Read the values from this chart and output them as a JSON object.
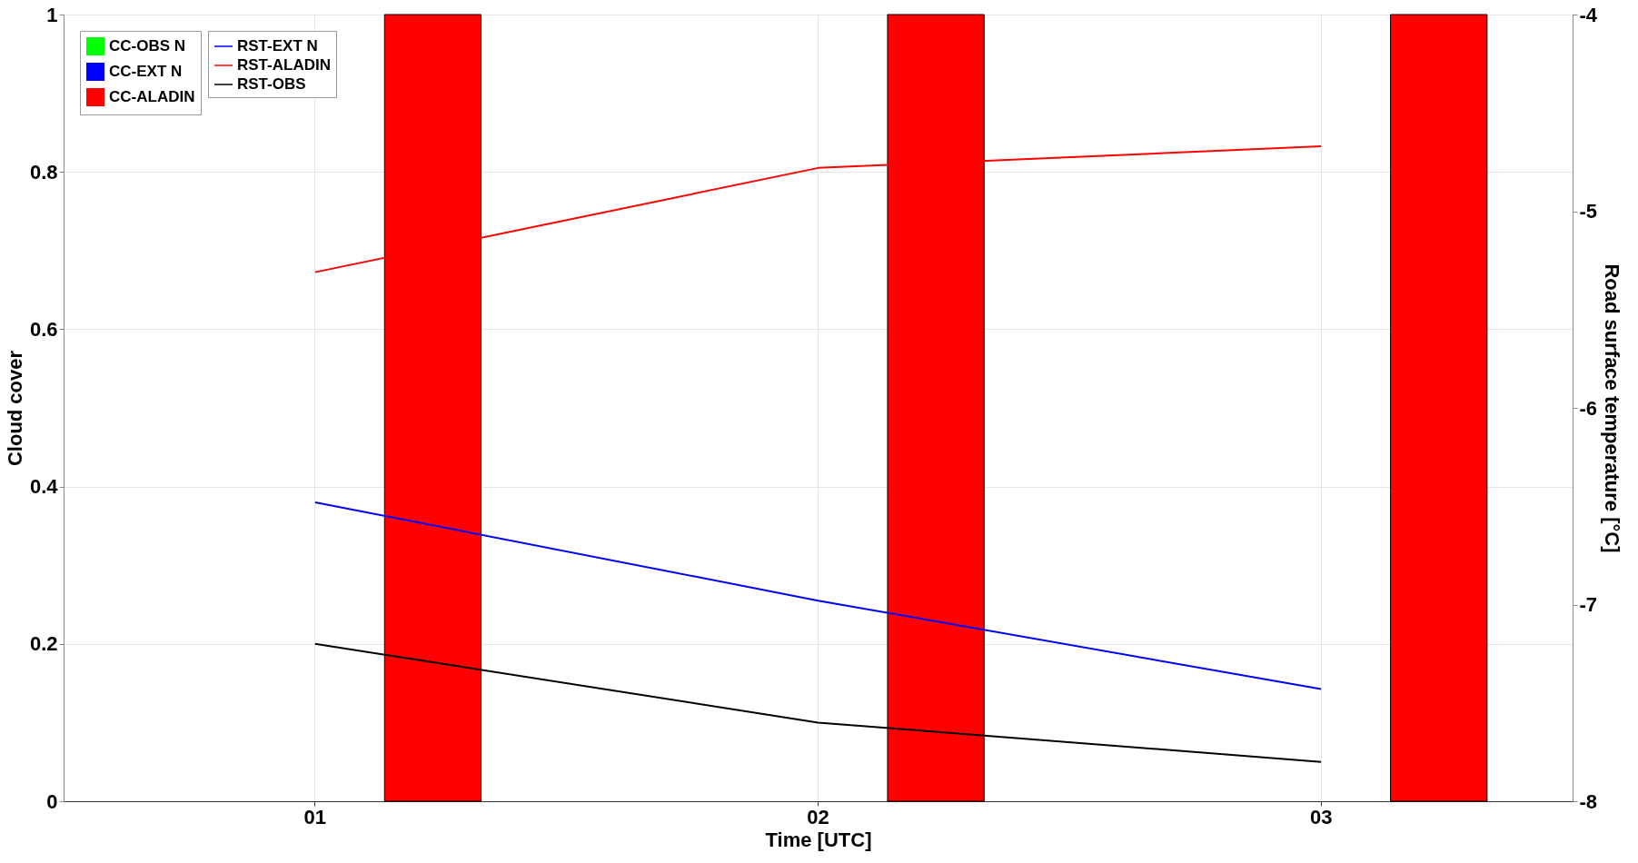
{
  "chart_data": {
    "type": "bar",
    "xlabel": "Time [UTC]",
    "ylabel": "Cloud cover",
    "y2label": "Road surface temperature [°C]",
    "categories": [
      "01",
      "02",
      "03"
    ],
    "ylim": [
      0,
      1
    ],
    "yticks": [
      0,
      0.2,
      0.4,
      0.6,
      0.8,
      1
    ],
    "y2lim": [
      -8,
      -4
    ],
    "y2ticks": [
      -8,
      -7,
      -6,
      -5,
      -4
    ],
    "grid": true,
    "legend": "top left",
    "series": [
      {
        "name": "CC-OBS N",
        "color": "#00ff00",
        "values": [
          0,
          0,
          0
        ]
      },
      {
        "name": "CC-EXT N",
        "color": "#0000ff",
        "values": [
          0,
          0,
          0
        ]
      },
      {
        "name": "CC-ALADIN",
        "color": "#ff0000",
        "values": [
          1,
          1,
          1
        ]
      },
      {
        "name": "RST-EXT N",
        "type": "line",
        "axis": "y2",
        "color": "#0000ff",
        "values": [
          -6.48,
          -6.98,
          -7.43
        ]
      },
      {
        "name": "RST-ALADIN",
        "type": "line",
        "axis": "y2",
        "color": "#ff0000",
        "values": [
          -5.31,
          -4.78,
          -4.67
        ]
      },
      {
        "name": "RST-OBS",
        "type": "line",
        "axis": "y2",
        "color": "#000000",
        "values": [
          -7.2,
          -7.6,
          -7.8
        ]
      }
    ]
  }
}
